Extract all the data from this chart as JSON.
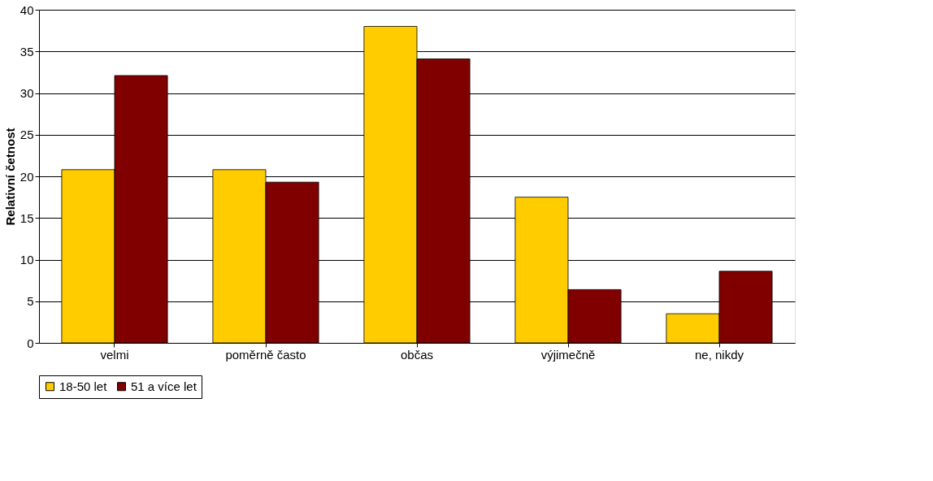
{
  "chart_data": {
    "type": "bar",
    "ylabel": "Relativní četnost",
    "categories": [
      "velmi",
      "poměrně často",
      "občas",
      "výjimečně",
      "ne, nikdy"
    ],
    "series": [
      {
        "name": "18-50 let",
        "color": "#ffcc00",
        "values": [
          20.8,
          20.8,
          38.0,
          17.5,
          3.5
        ]
      },
      {
        "name": "51 a více let",
        "color": "#800000",
        "values": [
          32.1,
          19.3,
          34.1,
          6.4,
          8.6
        ]
      }
    ],
    "ylim": [
      0,
      40
    ],
    "yticks": [
      0,
      5,
      10,
      15,
      20,
      25,
      30,
      35,
      40
    ],
    "grid": "y",
    "legend": "bottom"
  }
}
